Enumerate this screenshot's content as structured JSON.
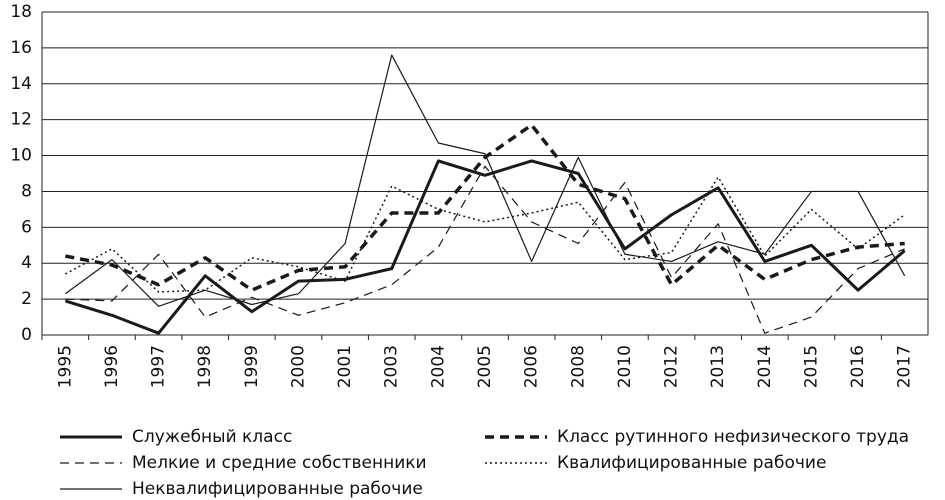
{
  "chart_data": {
    "type": "line",
    "categories": [
      "1995",
      "1996",
      "1997",
      "1998",
      "1999",
      "2000",
      "2001",
      "2003",
      "2004",
      "2005",
      "2006",
      "2008",
      "2010",
      "2012",
      "2013",
      "2014",
      "2015",
      "2016",
      "2017"
    ],
    "ylim": [
      0,
      18
    ],
    "yticks": [
      0,
      2,
      4,
      6,
      8,
      10,
      12,
      14,
      16,
      18
    ],
    "grid": true,
    "series": [
      {
        "name": "Служебный класс",
        "color": "#1a1a1a",
        "dash": "solid",
        "width": 3,
        "values": [
          1.9,
          1.1,
          0.1,
          3.3,
          1.3,
          3.0,
          3.1,
          3.7,
          9.7,
          8.9,
          9.7,
          9.0,
          4.8,
          6.7,
          8.2,
          4.1,
          5.0,
          2.5,
          4.7
        ]
      },
      {
        "name": "Класс рутинного нефизического труда",
        "color": "#1a1a1a",
        "dash": "dashed",
        "width": 3.5,
        "values": [
          4.4,
          3.9,
          2.8,
          4.3,
          2.5,
          3.6,
          3.8,
          6.8,
          6.8,
          9.9,
          11.7,
          8.4,
          7.6,
          2.8,
          5.0,
          3.1,
          4.2,
          4.9,
          5.1
        ]
      },
      {
        "name": "Мелкие и средние собственники",
        "color": "#1a1a1a",
        "dash": "dashed",
        "width": 1.2,
        "values": [
          2.0,
          1.9,
          4.5,
          1.0,
          2.1,
          1.1,
          1.8,
          2.8,
          4.9,
          9.4,
          6.3,
          5.1,
          8.5,
          3.2,
          6.2,
          0.1,
          1.0,
          3.7,
          4.8
        ]
      },
      {
        "name": "Квалифицированные рабочие",
        "color": "#1a1a1a",
        "dash": "dotted",
        "width": 1.5,
        "values": [
          3.4,
          4.8,
          2.4,
          2.5,
          4.3,
          3.8,
          3.0,
          8.3,
          7.0,
          6.3,
          6.8,
          7.4,
          4.2,
          4.6,
          8.8,
          4.4,
          7.0,
          4.8,
          6.7
        ]
      },
      {
        "name": "Неквалифицированные рабочие",
        "color": "#1a1a1a",
        "dash": "solid",
        "width": 1.2,
        "values": [
          2.3,
          4.2,
          1.6,
          2.5,
          1.7,
          2.3,
          5.1,
          15.6,
          10.7,
          10.1,
          4.1,
          9.9,
          4.5,
          4.1,
          5.2,
          4.5,
          8.0,
          8.0,
          3.3
        ]
      }
    ]
  }
}
